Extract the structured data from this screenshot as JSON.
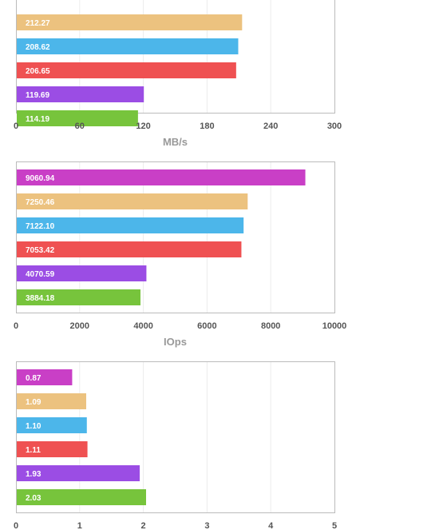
{
  "colors": {
    "magenta": "#c93fc6",
    "tan": "#ecc27f",
    "sky": "#4cb6ea",
    "red": "#ef5152",
    "purple": "#9b4de4",
    "green": "#77c43c",
    "frame": "#bbbbbb",
    "grid": "#ececec"
  },
  "chart_data": [
    {
      "type": "bar",
      "orientation": "horizontal",
      "xlabel": "MB/s",
      "xlim": [
        0,
        300
      ],
      "ticks": [
        "0",
        "60",
        "120",
        "180",
        "240",
        "300"
      ],
      "grid": true,
      "bars": [
        {
          "value": 212.27,
          "label": "212.27",
          "color": "#ecc27f"
        },
        {
          "value": 208.62,
          "label": "208.62",
          "color": "#4cb6ea"
        },
        {
          "value": 206.65,
          "label": "206.65",
          "color": "#ef5152"
        },
        {
          "value": 119.69,
          "label": "119.69",
          "color": "#9b4de4"
        },
        {
          "value": 114.19,
          "label": "114.19",
          "color": "#77c43c"
        }
      ]
    },
    {
      "type": "bar",
      "orientation": "horizontal",
      "xlabel": "IOps",
      "xlim": [
        0,
        10000
      ],
      "ticks": [
        "0",
        "2000",
        "4000",
        "6000",
        "8000",
        "10000"
      ],
      "grid": true,
      "bars": [
        {
          "value": 9060.94,
          "label": "9060.94",
          "color": "#c93fc6"
        },
        {
          "value": 7250.46,
          "label": "7250.46",
          "color": "#ecc27f"
        },
        {
          "value": 7122.1,
          "label": "7122.10",
          "color": "#4cb6ea"
        },
        {
          "value": 7053.42,
          "label": "7053.42",
          "color": "#ef5152"
        },
        {
          "value": 4070.59,
          "label": "4070.59",
          "color": "#9b4de4"
        },
        {
          "value": 3884.18,
          "label": "3884.18",
          "color": "#77c43c"
        }
      ]
    },
    {
      "type": "bar",
      "orientation": "horizontal",
      "xlabel": "",
      "xlim": [
        0,
        5
      ],
      "ticks": [
        "0",
        "1",
        "2",
        "3",
        "4",
        "5"
      ],
      "grid": true,
      "bars": [
        {
          "value": 0.87,
          "label": "0.87",
          "color": "#c93fc6"
        },
        {
          "value": 1.09,
          "label": "1.09",
          "color": "#ecc27f"
        },
        {
          "value": 1.1,
          "label": "1.10",
          "color": "#4cb6ea"
        },
        {
          "value": 1.11,
          "label": "1.11",
          "color": "#ef5152"
        },
        {
          "value": 1.93,
          "label": "1.93",
          "color": "#9b4de4"
        },
        {
          "value": 2.03,
          "label": "2.03",
          "color": "#77c43c"
        }
      ]
    }
  ]
}
